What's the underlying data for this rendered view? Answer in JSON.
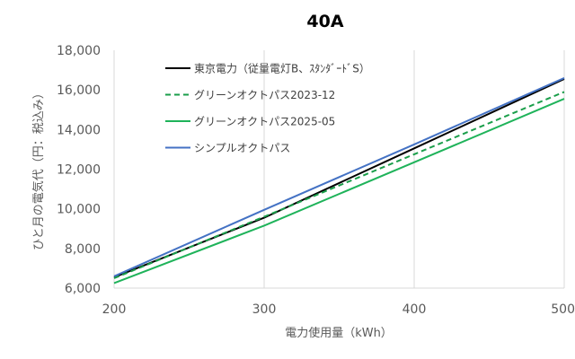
{
  "chart_data": {
    "type": "line",
    "title": "40A",
    "xlabel": "電力使用量（kWh）",
    "ylabel": "ひと月の電気代（円：税込み）",
    "xlim": [
      200,
      500
    ],
    "ylim": [
      6000,
      18000
    ],
    "x_ticks": [
      "200",
      "300",
      "400",
      "500"
    ],
    "y_ticks": [
      "6,000",
      "8,000",
      "10,000",
      "12,000",
      "14,000",
      "16,000",
      "18,000"
    ],
    "grid": "vertical",
    "legend_position": "top-left",
    "x": [
      200,
      300,
      400,
      500
    ],
    "series": [
      {
        "name": "東京電力（従量電灯B、ｽﾀﾝﾀﾞｰﾄﾞS）",
        "color": "#000000",
        "dash": "solid",
        "values": [
          6550,
          9550,
          13050,
          16550
        ]
      },
      {
        "name": "グリーンオクトパス2023-12",
        "color": "#1a9e4a",
        "dash": "dashed",
        "values": [
          6500,
          9600,
          12750,
          15900
        ]
      },
      {
        "name": "グリーンオクトパス2025-05",
        "color": "#1fb35a",
        "dash": "solid",
        "values": [
          6250,
          9150,
          12350,
          15550
        ]
      },
      {
        "name": "シンプルオクトパス",
        "color": "#4472c4",
        "dash": "solid",
        "values": [
          6600,
          9950,
          13250,
          16600
        ]
      }
    ]
  }
}
